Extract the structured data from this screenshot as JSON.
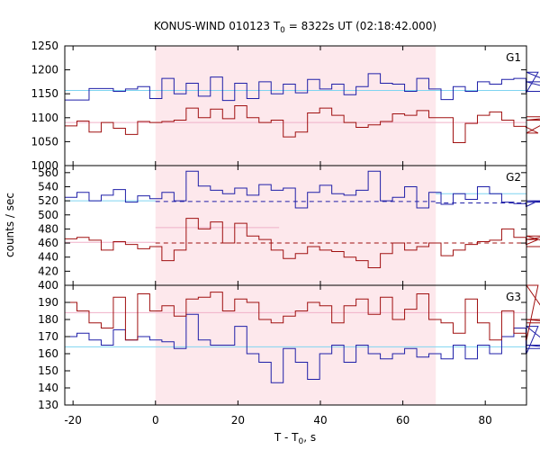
{
  "chart_data": {
    "type": "line",
    "title": "KONUS-WIND 010123 T",
    "title_sub": "0",
    "title_rest": " = 8322s UT (02:18:42.000)",
    "xlabel": "T - T",
    "xlabel_sub": "0",
    "xlabel_rest": ", s",
    "ylabel": "counts / sec",
    "xlim": [
      -22,
      90
    ],
    "x_ticks": [
      -20,
      0,
      20,
      40,
      60,
      80
    ],
    "x_tick_labels": [
      "-20",
      "0",
      "20",
      "40",
      "60",
      "80"
    ],
    "shaded_interval": [
      0,
      68
    ],
    "bin_width": 2.944,
    "x_start": -22,
    "colors": {
      "blue": "#1f1fa8",
      "red": "#a01010",
      "cyan": "#7fd4f0",
      "pink": "#f0b0c8",
      "shade": "#fde8ec"
    },
    "panels": [
      {
        "label": "G1",
        "ylim": [
          1000,
          1250
        ],
        "y_ticks": [
          1000,
          1050,
          1100,
          1150,
          1200,
          1250
        ],
        "y_tick_labels": [
          "1000",
          "1050",
          "1100",
          "1150",
          "1200",
          "1250"
        ],
        "series": [
          {
            "color": "blue",
            "values": [
              1137,
              1137,
              1161,
              1161,
              1155,
              1160,
              1165,
              1140,
              1182,
              1150,
              1172,
              1145,
              1185,
              1136,
              1172,
              1140,
              1175,
              1150,
              1170,
              1152,
              1180,
              1160,
              1170,
              1148,
              1165,
              1192,
              1172,
              1170,
              1155,
              1182,
              1160,
              1138,
              1165,
              1155,
              1175,
              1170,
              1180,
              1182,
              1153,
              1195,
              1175,
              1155
            ]
          },
          {
            "color": "red",
            "values": [
              1083,
              1093,
              1070,
              1090,
              1078,
              1065,
              1092,
              1090,
              1092,
              1095,
              1120,
              1100,
              1118,
              1098,
              1125,
              1100,
              1090,
              1095,
              1060,
              1070,
              1110,
              1120,
              1105,
              1090,
              1080,
              1085,
              1092,
              1108,
              1105,
              1115,
              1100,
              1100,
              1048,
              1088,
              1105,
              1112,
              1095,
              1082,
              1080,
              1068,
              1095,
              1102
            ]
          }
        ],
        "ref_lines": [
          {
            "color": "cyan",
            "y": 1157,
            "x_from": -22,
            "x_to": 90,
            "dashed": false
          },
          {
            "color": "pink",
            "y": 1090,
            "x_from": -22,
            "x_to": 90,
            "dashed": false
          }
        ]
      },
      {
        "label": "G2",
        "ylim": [
          400,
          570
        ],
        "y_ticks": [
          400,
          420,
          440,
          460,
          480,
          500,
          520,
          540,
          560
        ],
        "y_tick_labels": [
          "400",
          "420",
          "440",
          "460",
          "480",
          "500",
          "520",
          "540",
          "560"
        ],
        "series": [
          {
            "color": "blue",
            "values": [
              525,
              532,
              520,
              528,
              536,
              518,
              527,
              523,
              532,
              520,
              562,
              541,
              535,
              530,
              538,
              528,
              543,
              535,
              538,
              510,
              532,
              542,
              530,
              528,
              535,
              562,
              520,
              525,
              540,
              510,
              532,
              515,
              530,
              522,
              540,
              530,
              518,
              516,
              512,
              520,
              520,
              518
            ]
          },
          {
            "color": "red",
            "values": [
              466,
              468,
              464,
              450,
              462,
              458,
              452,
              455,
              435,
              450,
              495,
              480,
              490,
              460,
              488,
              470,
              465,
              450,
              438,
              445,
              455,
              450,
              448,
              440,
              435,
              425,
              445,
              460,
              450,
              455,
              460,
              442,
              450,
              458,
              462,
              464,
              480,
              468,
              458,
              465,
              470,
              455
            ]
          }
        ],
        "ref_lines": [
          {
            "color": "cyan",
            "y": 520,
            "x_from": -22,
            "x_to": 0,
            "dashed": false
          },
          {
            "color": "blue",
            "y": 519,
            "x_from": 0,
            "x_to": 68,
            "dashed": true
          },
          {
            "color": "cyan",
            "y": 530,
            "x_from": 68,
            "x_to": 90,
            "dashed": false
          },
          {
            "color": "blue",
            "y": 517,
            "x_from": 68,
            "x_to": 90,
            "dashed": true
          },
          {
            "color": "pink",
            "y": 461,
            "x_from": -22,
            "x_to": 0,
            "dashed": false
          },
          {
            "color": "pink",
            "y": 482,
            "x_from": 0,
            "x_to": 30,
            "dashed": false
          },
          {
            "color": "red",
            "y": 460,
            "x_from": 0,
            "x_to": 68,
            "dashed": true
          },
          {
            "color": "red",
            "y": 460,
            "x_from": 68,
            "x_to": 90,
            "dashed": true
          }
        ]
      },
      {
        "label": "G3",
        "ylim": [
          130,
          200
        ],
        "y_ticks": [
          130,
          140,
          150,
          160,
          170,
          180,
          190
        ],
        "y_tick_labels": [
          "130",
          "140",
          "150",
          "160",
          "170",
          "180",
          "190"
        ],
        "series": [
          {
            "color": "blue",
            "values": [
              170,
              172,
              168,
              165,
              174,
              168,
              170,
              168,
              167,
              163,
              183,
              168,
              165,
              165,
              176,
              160,
              155,
              143,
              163,
              155,
              145,
              160,
              165,
              155,
              165,
              160,
              157,
              160,
              163,
              158,
              160,
              157,
              165,
              157,
              165,
              160,
              170,
              175,
              160,
              176,
              165,
              163
            ]
          },
          {
            "color": "red",
            "values": [
              190,
              185,
              178,
              175,
              193,
              168,
              195,
              185,
              188,
              182,
              192,
              193,
              196,
              185,
              192,
              190,
              180,
              178,
              182,
              185,
              190,
              188,
              178,
              188,
              192,
              183,
              193,
              180,
              186,
              195,
              180,
              178,
              172,
              192,
              178,
              168,
              185,
              172,
              168,
              200,
              180,
              178
            ]
          }
        ],
        "ref_lines": [
          {
            "color": "cyan",
            "y": 164,
            "x_from": -22,
            "x_to": 90,
            "dashed": false
          },
          {
            "color": "pink",
            "y": 184,
            "x_from": -22,
            "x_to": 90,
            "dashed": false
          }
        ]
      }
    ]
  }
}
